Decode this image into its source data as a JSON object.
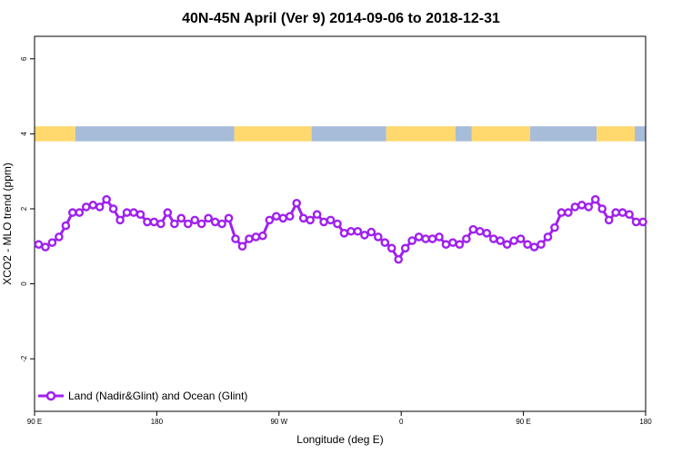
{
  "chart_data": {
    "type": "line",
    "title": "40N-45N April (Ver 9)   2014-09-06 to 2018-12-31",
    "xlabel": "Longitude (deg E)",
    "ylabel": "XCO2 - MLO trend (ppm)",
    "x_ticks": [
      {
        "lon": 90,
        "label": "90 E"
      },
      {
        "lon": 180,
        "label": "180"
      },
      {
        "lon": 270,
        "label": "90 W"
      },
      {
        "lon": 360,
        "label": "0"
      },
      {
        "lon": 450,
        "label": "90 E"
      },
      {
        "lon": 540,
        "label": "180"
      }
    ],
    "xlim": [
      90,
      540
    ],
    "y_ticks": [
      -2,
      0,
      2,
      4,
      6
    ],
    "ylim": [
      -3.4,
      6.6
    ],
    "legend": {
      "position": "bottom-left",
      "label": "Land (Nadir&Glint) and Ocean (Glint)"
    },
    "colors": {
      "series": "#a020f0",
      "marker_fill": "#ffffff",
      "land": "#ffd86e",
      "ocean": "#a6bcd9"
    },
    "surface_strip": {
      "y_range": [
        3.8,
        4.2
      ],
      "segments": [
        {
          "type": "land",
          "lon": [
            90,
            120
          ]
        },
        {
          "type": "ocean",
          "lon": [
            120,
            237
          ]
        },
        {
          "type": "land",
          "lon": [
            237,
            294
          ]
        },
        {
          "type": "ocean",
          "lon": [
            294,
            349
          ]
        },
        {
          "type": "land",
          "lon": [
            349,
            400
          ]
        },
        {
          "type": "ocean",
          "lon": [
            400,
            412
          ]
        },
        {
          "type": "land",
          "lon": [
            412,
            455
          ]
        },
        {
          "type": "ocean",
          "lon": [
            455,
            504
          ]
        },
        {
          "type": "land",
          "lon": [
            504,
            532
          ]
        },
        {
          "type": "ocean",
          "lon": [
            532,
            540
          ]
        }
      ]
    },
    "series": [
      {
        "name": "Land (Nadir&Glint) and Ocean (Glint)",
        "x": [
          93,
          98,
          103,
          108,
          113,
          118,
          123,
          128,
          133,
          138,
          143,
          148,
          153,
          158,
          163,
          168,
          173,
          178,
          183,
          188,
          193,
          198,
          203,
          208,
          213,
          218,
          223,
          228,
          233,
          238,
          243,
          248,
          253,
          258,
          263,
          268,
          273,
          278,
          283,
          288,
          293,
          298,
          303,
          308,
          313,
          318,
          323,
          328,
          333,
          338,
          343,
          348,
          353,
          358,
          363,
          368,
          373,
          378,
          383,
          388,
          393,
          398,
          403,
          408,
          413,
          418,
          423,
          428,
          433,
          438,
          443,
          448,
          453,
          458,
          463,
          468,
          473,
          478,
          483,
          488,
          493,
          498,
          503,
          508,
          513,
          518,
          523,
          528,
          533,
          538
        ],
        "y": [
          1.05,
          0.98,
          1.1,
          1.25,
          1.55,
          1.9,
          1.9,
          2.05,
          2.1,
          2.05,
          2.25,
          2.0,
          1.7,
          1.9,
          1.9,
          1.85,
          1.65,
          1.65,
          1.6,
          1.9,
          1.6,
          1.75,
          1.6,
          1.7,
          1.6,
          1.75,
          1.65,
          1.6,
          1.75,
          1.2,
          1.0,
          1.2,
          1.25,
          1.28,
          1.7,
          1.8,
          1.75,
          1.8,
          2.15,
          1.75,
          1.7,
          1.85,
          1.65,
          1.7,
          1.6,
          1.35,
          1.4,
          1.4,
          1.3,
          1.38,
          1.25,
          1.1,
          0.95,
          0.65,
          0.95,
          1.15,
          1.25,
          1.2,
          1.2,
          1.25,
          1.05,
          1.1,
          1.05,
          1.2,
          1.45,
          1.4,
          1.35,
          1.2,
          1.15,
          1.05,
          1.15,
          1.2,
          1.05,
          0.98,
          1.05,
          1.25,
          1.5,
          1.9,
          1.9,
          2.05,
          2.1,
          2.05,
          2.25,
          2.0,
          1.7,
          1.9,
          1.9,
          1.85,
          1.65,
          1.65
        ]
      }
    ]
  }
}
